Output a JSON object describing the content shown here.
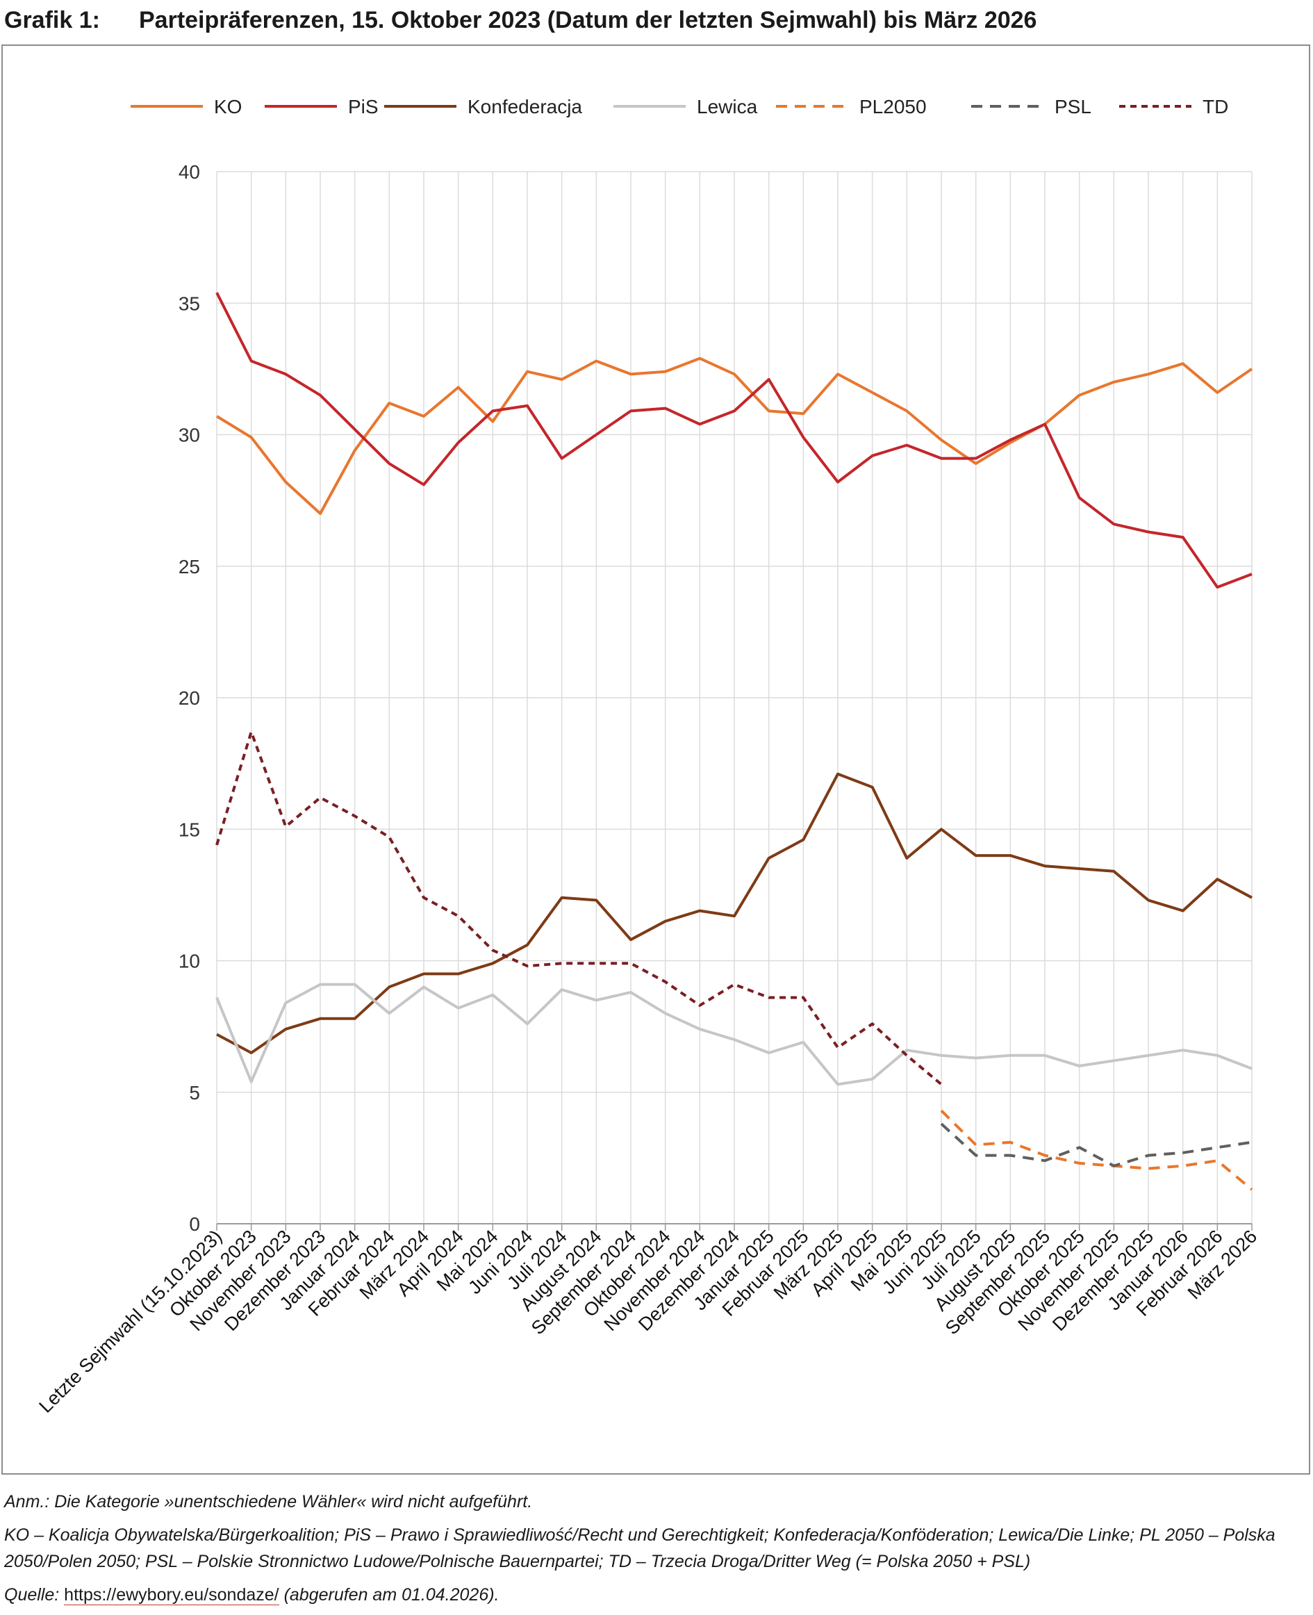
{
  "figure": {
    "label": "Grafik 1:",
    "title": "Parteipräferenzen, 15. Oktober 2023 (Datum der letzten Sejmwahl) bis März 2026"
  },
  "notes": {
    "anm": "Anm.: Die Kategorie »unentschiedene Wähler« wird nicht aufgeführt.",
    "abbreviations": "KO – Koalicja Obywatelska/Bürgerkoalition; PiS – Prawo i Sprawiedliwość/Recht und Gerechtigkeit; Konfederacja/Konföderation; Lewica/Die Linke; PL 2050 – Polska 2050/Polen 2050; PSL – Polskie Stronnictwo Ludowe/Polnische Bauernpartei; TD – Trzecia Droga/Dritter Weg (= Polska 2050 + PSL)",
    "source_prefix": "Quelle:",
    "source_url": "https://ewybory.eu/sondaze/",
    "source_suffix": "(abgerufen am 01.04.2026)."
  },
  "chart_data": {
    "type": "line",
    "title": "Parteipräferenzen, 15. Oktober 2023 (Datum der letzten Sejmwahl) bis März 2026",
    "xlabel": "",
    "ylabel": "",
    "ylim": [
      0,
      40
    ],
    "yticks": [
      0,
      5,
      10,
      15,
      20,
      25,
      30,
      35,
      40
    ],
    "grid": true,
    "legend_position": "top",
    "categories": [
      "Letzte Sejmwahl (15.10.2023)",
      "Oktober 2023",
      "November 2023",
      "Dezember 2023",
      "Januar 2024",
      "Februar 2024",
      "März 2024",
      "April 2024",
      "Mai 2024",
      "Juni 2024",
      "Juli 2024",
      "August 2024",
      "September 2024",
      "Oktober 2024",
      "November 2024",
      "Dezember 2024",
      "Januar 2025",
      "Februar 2025",
      "März 2025",
      "April 2025",
      "Mai 2025",
      "Juni 2025",
      "Juli 2025",
      "August 2025",
      "September 2025",
      "Oktober 2025",
      "November 2025",
      "Dezember 2025",
      "Januar 2026",
      "Februar 2026",
      "März 2026"
    ],
    "series": [
      {
        "name": "KO",
        "color": "#e8772e",
        "dash": "solid",
        "values": [
          30.7,
          29.9,
          28.2,
          27.0,
          29.4,
          31.2,
          30.7,
          31.8,
          30.5,
          32.4,
          32.1,
          32.8,
          32.3,
          32.4,
          32.9,
          32.3,
          30.9,
          30.8,
          32.3,
          31.6,
          30.9,
          29.8,
          28.9,
          29.7,
          30.4,
          31.5,
          32.0,
          32.3,
          32.7,
          31.6,
          32.5
        ]
      },
      {
        "name": "PiS",
        "color": "#c4262b",
        "dash": "solid",
        "values": [
          35.4,
          32.8,
          32.3,
          31.5,
          30.2,
          28.9,
          28.1,
          29.7,
          30.9,
          31.1,
          29.1,
          30.0,
          30.9,
          31.0,
          30.4,
          30.9,
          32.1,
          29.9,
          28.2,
          29.2,
          29.6,
          29.1,
          29.1,
          29.8,
          30.4,
          27.6,
          26.6,
          26.3,
          26.1,
          24.2,
          24.7
        ]
      },
      {
        "name": "Konfederacja",
        "color": "#7e3b16",
        "dash": "solid",
        "values": [
          7.2,
          6.5,
          7.4,
          7.8,
          7.8,
          9.0,
          9.5,
          9.5,
          9.9,
          10.6,
          12.4,
          12.3,
          10.8,
          11.5,
          11.9,
          11.7,
          13.9,
          14.6,
          17.1,
          16.6,
          13.9,
          15.0,
          14.0,
          14.0,
          13.6,
          13.5,
          13.4,
          12.3,
          11.9,
          13.1,
          12.4
        ]
      },
      {
        "name": "Lewica",
        "color": "#c6c6c6",
        "dash": "solid",
        "values": [
          8.6,
          5.4,
          8.4,
          9.1,
          9.1,
          8.0,
          9.0,
          8.2,
          8.7,
          7.6,
          8.9,
          8.5,
          8.8,
          8.0,
          7.4,
          7.0,
          6.5,
          6.9,
          5.3,
          5.5,
          6.6,
          6.4,
          6.3,
          6.4,
          6.4,
          6.0,
          6.2,
          6.4,
          6.6,
          6.4,
          5.9
        ]
      },
      {
        "name": "PL2050",
        "color": "#e8772e",
        "dash": "dashed",
        "values": [
          null,
          null,
          null,
          null,
          null,
          null,
          null,
          null,
          null,
          null,
          null,
          null,
          null,
          null,
          null,
          null,
          null,
          null,
          null,
          null,
          null,
          4.3,
          3.0,
          3.1,
          2.6,
          2.3,
          2.2,
          2.1,
          2.2,
          2.4,
          1.3
        ]
      },
      {
        "name": "PSL",
        "color": "#5f5f5f",
        "dash": "dashed",
        "values": [
          null,
          null,
          null,
          null,
          null,
          null,
          null,
          null,
          null,
          null,
          null,
          null,
          null,
          null,
          null,
          null,
          null,
          null,
          null,
          null,
          null,
          3.8,
          2.6,
          2.6,
          2.4,
          2.9,
          2.2,
          2.6,
          2.7,
          2.9,
          3.1
        ]
      },
      {
        "name": "TD",
        "color": "#7a1f23",
        "dash": "dotted",
        "values": [
          14.4,
          18.7,
          15.1,
          16.2,
          15.5,
          14.7,
          12.4,
          11.7,
          10.4,
          9.8,
          9.9,
          9.9,
          9.9,
          9.2,
          8.3,
          9.1,
          8.6,
          8.6,
          6.7,
          7.6,
          6.4,
          5.3,
          null,
          null,
          null,
          null,
          null,
          null,
          null,
          null,
          null
        ]
      }
    ]
  }
}
